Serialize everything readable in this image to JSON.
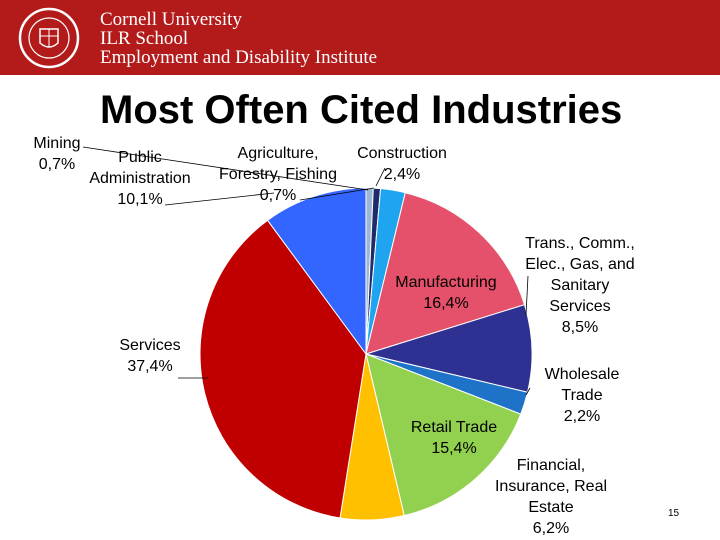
{
  "header": {
    "org_line1": "Cornell University",
    "org_line2": "ILR School",
    "org_line3": "Employment and Disability Institute",
    "seal_text": "CORNELL UNIVERSITY FOUNDED A.D. 1865",
    "band_color": "#b31b1b"
  },
  "slide_number": "15",
  "chart_data": {
    "type": "pie",
    "title": "Most Often Cited Industries",
    "start": "top",
    "direction": "clockwise",
    "slices": [
      {
        "label": [
          "Mining",
          "0,7%"
        ],
        "value": 0.7,
        "color": "#9bb7d4"
      },
      {
        "label": [
          "Agriculture,",
          "Forestry, Fishing",
          "0,7%"
        ],
        "value": 0.7,
        "color": "#1f2a6b"
      },
      {
        "label": [
          "Construction",
          "2,4%"
        ],
        "value": 2.4,
        "color": "#1fa5f0"
      },
      {
        "label": [
          "Manufacturing",
          "16,4%"
        ],
        "value": 16.4,
        "color": "#e5506a"
      },
      {
        "label": [
          "Trans., Comm.,",
          "Elec., Gas, and",
          "Sanitary",
          "Services",
          "8,5%"
        ],
        "value": 8.5,
        "color": "#2e3192"
      },
      {
        "label": [
          "Wholesale",
          "Trade",
          "2,2%"
        ],
        "value": 2.2,
        "color": "#1e73c8"
      },
      {
        "label": [
          "Retail Trade",
          "15,4%"
        ],
        "value": 15.4,
        "color": "#92d050"
      },
      {
        "label": [
          "Financial,",
          "Insurance, Real",
          "Estate",
          "6,2%"
        ],
        "value": 6.2,
        "color": "#ffc000"
      },
      {
        "label": [
          "Services",
          "37,4%"
        ],
        "value": 37.4,
        "color": "#c00000"
      },
      {
        "label": [
          "Public",
          "Administration",
          "10,1%"
        ],
        "value": 10.1,
        "color": "#3366ff"
      }
    ]
  }
}
